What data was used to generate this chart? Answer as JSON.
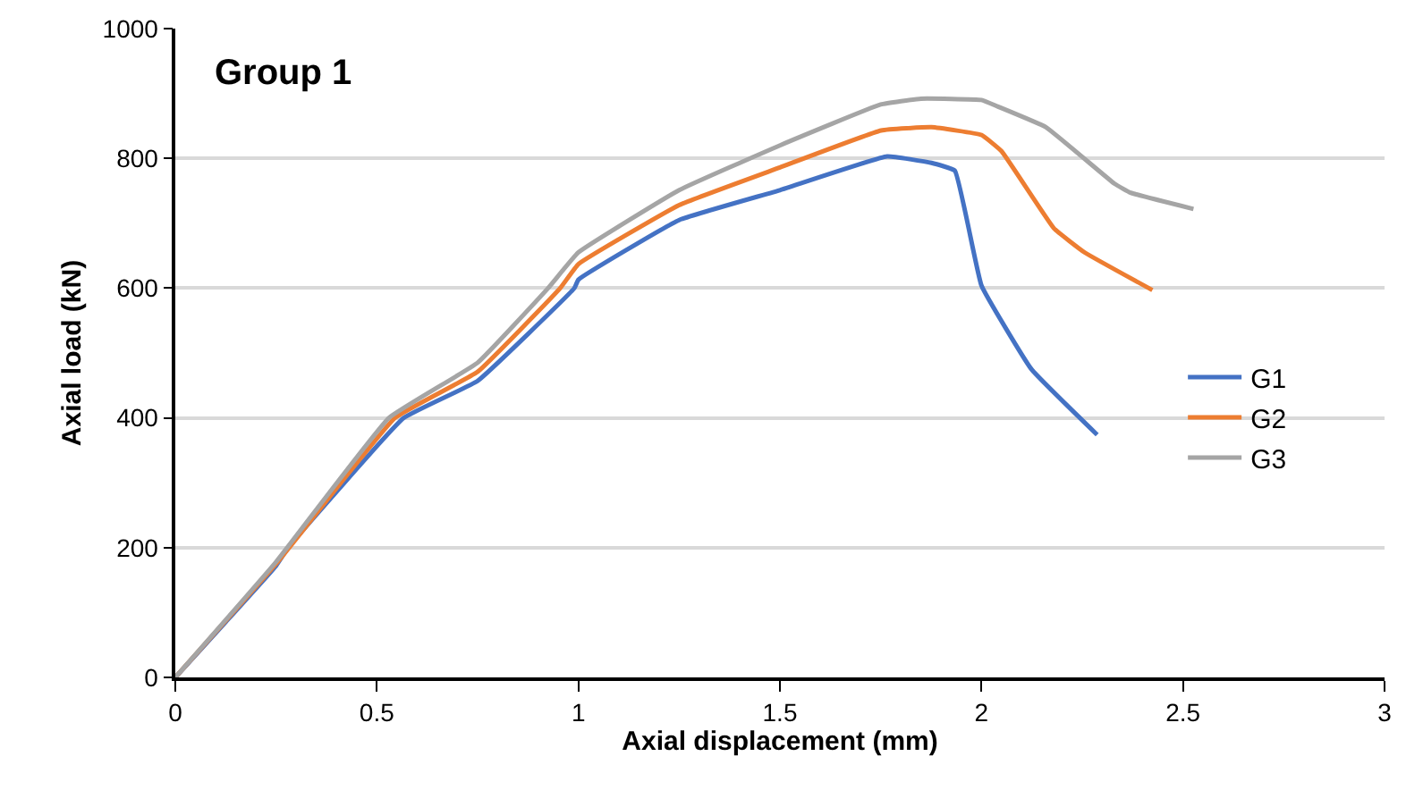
{
  "chart_data": {
    "type": "line",
    "xlabel": "Axial displacement (mm)",
    "ylabel": "Axial load (kN)",
    "annotations": [
      "Group 1"
    ],
    "xlim": [
      0,
      3
    ],
    "xticks": [
      0,
      0.5,
      1,
      1.5,
      2,
      2.5,
      3
    ],
    "ylim": [
      0,
      1000
    ],
    "yticks": [
      0,
      200,
      400,
      600,
      800,
      1000
    ],
    "grid": "y",
    "legend": "right",
    "marker": "none",
    "line_style": "solid",
    "series": [
      {
        "name": "G1",
        "color": "#4472c4",
        "x": [
          0,
          0.25,
          0.28,
          0.567,
          0.75,
          0.99,
          1,
          1.25,
          1.5,
          1.766,
          1.876,
          1.934,
          2.0,
          2.124,
          2.287
        ],
        "values": [
          0,
          172,
          200,
          400,
          457,
          600,
          613,
          705,
          751,
          803,
          793,
          781,
          604,
          475,
          374
        ]
      },
      {
        "name": "G2",
        "color": "#ed7d31",
        "x": [
          0,
          0.25,
          0.545,
          0.75,
          0.955,
          1,
          1.25,
          1.5,
          1.751,
          1.876,
          2.0,
          2.05,
          2.18,
          2.256,
          2.424
        ],
        "values": [
          0,
          175,
          400,
          471,
          600,
          637,
          728,
          786,
          843,
          848,
          836,
          811,
          692,
          655,
          597
        ]
      },
      {
        "name": "G3",
        "color": "#a5a5a5",
        "x": [
          0,
          0.25,
          0.53,
          0.75,
          0.925,
          1,
          1.25,
          1.5,
          1.75,
          1.85,
          2.0,
          2.04,
          2.16,
          2.33,
          2.37,
          2.526
        ],
        "values": [
          0,
          178,
          400,
          485,
          600,
          655,
          751,
          820,
          883,
          892,
          890,
          880,
          848,
          761,
          747,
          722
        ]
      }
    ]
  }
}
